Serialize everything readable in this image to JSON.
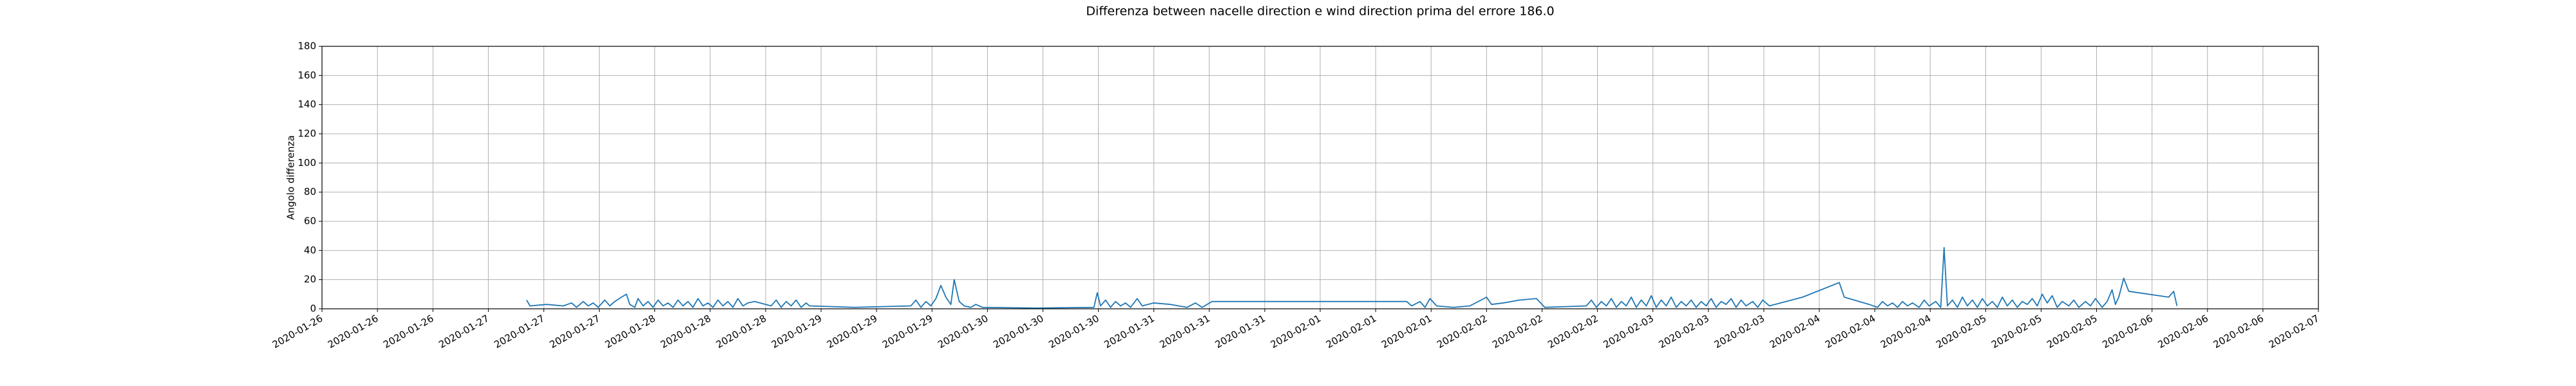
{
  "chart_data": {
    "type": "line",
    "title": "Differenza between nacelle direction e wind direction prima del errore 186.0",
    "y_label": "Angolo differenza",
    "series": [
      {
        "color": "#1f77b4",
        "x": [
          18288.23,
          18288.25,
          18288.35,
          18288.45,
          18288.5,
          18288.53,
          18288.57,
          18288.6,
          18288.63,
          18288.66,
          18288.7,
          18288.73,
          18288.76,
          18288.8,
          18288.83,
          18288.85,
          18288.88,
          18288.9,
          18288.93,
          18288.96,
          18288.99,
          18289.02,
          18289.05,
          18289.08,
          18289.11,
          18289.14,
          18289.17,
          18289.2,
          18289.23,
          18289.26,
          18289.29,
          18289.32,
          18289.35,
          18289.38,
          18289.41,
          18289.44,
          18289.47,
          18289.5,
          18289.53,
          18289.56,
          18289.6,
          18289.7,
          18289.73,
          18289.76,
          18289.79,
          18289.82,
          18289.85,
          18289.88,
          18289.91,
          18289.93,
          18290.2,
          18290.54,
          18290.57,
          18290.6,
          18290.63,
          18290.66,
          18290.69,
          18290.72,
          18290.75,
          18290.78,
          18290.8,
          18290.83,
          18290.86,
          18290.9,
          18290.93,
          18290.97,
          18291.3,
          18291.64,
          18291.66,
          18291.68,
          18291.71,
          18291.74,
          18291.77,
          18291.8,
          18291.83,
          18291.86,
          18291.9,
          18291.93,
          18292.0,
          18292.1,
          18292.2,
          18292.25,
          18292.29,
          18292.35,
          18293.52,
          18293.55,
          18293.6,
          18293.63,
          18293.66,
          18293.7,
          18293.8,
          18293.9,
          18294.0,
          18294.03,
          18294.1,
          18294.2,
          18294.3,
          18294.35,
          18294.6,
          18294.63,
          18294.66,
          18294.69,
          18294.72,
          18294.75,
          18294.78,
          18294.81,
          18294.84,
          18294.87,
          18294.9,
          18294.93,
          18294.96,
          18294.99,
          18295.02,
          18295.05,
          18295.08,
          18295.11,
          18295.14,
          18295.17,
          18295.2,
          18295.23,
          18295.26,
          18295.29,
          18295.32,
          18295.35,
          18295.38,
          18295.41,
          18295.44,
          18295.47,
          18295.5,
          18295.53,
          18295.56,
          18295.6,
          18295.63,
          18295.66,
          18295.7,
          18295.9,
          18296.12,
          18296.15,
          18296.3,
          18296.35,
          18296.38,
          18296.41,
          18296.44,
          18296.47,
          18296.5,
          18296.53,
          18296.56,
          18296.6,
          18296.63,
          18296.66,
          18296.7,
          18296.73,
          18296.75,
          18296.77,
          18296.8,
          18296.83,
          18296.86,
          18296.89,
          18296.92,
          18296.95,
          18296.98,
          18297.01,
          18297.04,
          18297.07,
          18297.1,
          18297.13,
          18297.16,
          18297.19,
          18297.22,
          18297.25,
          18297.28,
          18297.31,
          18297.34,
          18297.37,
          18297.4,
          18297.43,
          18297.46,
          18297.5,
          18297.53,
          18297.56,
          18297.6,
          18297.63,
          18297.66,
          18297.7,
          18297.73,
          18297.76,
          18297.78,
          18297.8,
          18297.83,
          18297.86,
          18298.1,
          18298.13,
          18298.15
        ],
        "values": [
          6,
          2,
          3,
          2,
          4,
          1,
          5,
          2,
          4,
          1,
          6,
          2,
          5,
          8,
          10,
          3,
          1,
          7,
          2,
          5,
          1,
          6,
          2,
          4,
          1,
          6,
          2,
          5,
          1,
          7,
          2,
          4,
          1,
          6,
          2,
          5,
          1,
          7,
          2,
          4,
          5,
          2,
          6,
          1,
          5,
          2,
          6,
          1,
          4,
          2,
          1,
          2,
          6,
          1,
          5,
          2,
          7,
          16,
          8,
          3,
          20,
          5,
          2,
          1,
          3,
          1,
          0.5,
          1,
          11,
          2,
          6,
          1,
          5,
          2,
          4,
          1,
          7,
          2,
          4,
          3,
          1,
          4,
          1,
          5,
          5,
          2,
          5,
          1,
          7,
          2,
          1,
          2,
          8,
          3,
          4,
          6,
          7,
          1,
          2,
          6,
          1,
          5,
          2,
          7,
          1,
          5,
          2,
          8,
          1,
          6,
          2,
          9,
          1,
          6,
          2,
          8,
          1,
          5,
          2,
          6,
          1,
          5,
          2,
          7,
          1,
          5,
          3,
          7,
          1,
          6,
          2,
          5,
          1,
          6,
          2,
          8,
          18,
          8,
          3,
          1,
          5,
          2,
          4,
          1,
          5,
          2,
          4,
          1,
          6,
          2,
          5,
          1,
          42,
          2,
          6,
          1,
          8,
          2,
          6,
          1,
          7,
          2,
          5,
          1,
          8,
          2,
          6,
          1,
          5,
          3,
          7,
          2,
          10,
          4,
          9,
          1,
          5,
          2,
          6,
          1,
          5,
          2,
          7,
          1,
          5,
          13,
          3,
          8,
          21,
          12,
          8,
          12,
          2
        ]
      }
    ],
    "xlim": [
      18287,
      18299
    ],
    "xticks": [
      {
        "value": 18287,
        "label": "2020-01-26"
      },
      {
        "value": 18287.3333,
        "label": "2020-01-26"
      },
      {
        "value": 18287.6667,
        "label": "2020-01-26"
      },
      {
        "value": 18288,
        "label": "2020-01-27"
      },
      {
        "value": 18288.3333,
        "label": "2020-01-27"
      },
      {
        "value": 18288.6667,
        "label": "2020-01-27"
      },
      {
        "value": 18289,
        "label": "2020-01-28"
      },
      {
        "value": 18289.3333,
        "label": "2020-01-28"
      },
      {
        "value": 18289.6667,
        "label": "2020-01-28"
      },
      {
        "value": 18290,
        "label": "2020-01-29"
      },
      {
        "value": 18290.3333,
        "label": "2020-01-29"
      },
      {
        "value": 18290.6667,
        "label": "2020-01-29"
      },
      {
        "value": 18291,
        "label": "2020-01-30"
      },
      {
        "value": 18291.3333,
        "label": "2020-01-30"
      },
      {
        "value": 18291.6667,
        "label": "2020-01-30"
      },
      {
        "value": 18292,
        "label": "2020-01-31"
      },
      {
        "value": 18292.3333,
        "label": "2020-01-31"
      },
      {
        "value": 18292.6667,
        "label": "2020-01-31"
      },
      {
        "value": 18293,
        "label": "2020-02-01"
      },
      {
        "value": 18293.3333,
        "label": "2020-02-01"
      },
      {
        "value": 18293.6667,
        "label": "2020-02-01"
      },
      {
        "value": 18294,
        "label": "2020-02-02"
      },
      {
        "value": 18294.3333,
        "label": "2020-02-02"
      },
      {
        "value": 18294.6667,
        "label": "2020-02-02"
      },
      {
        "value": 18295,
        "label": "2020-02-03"
      },
      {
        "value": 18295.3333,
        "label": "2020-02-03"
      },
      {
        "value": 18295.6667,
        "label": "2020-02-03"
      },
      {
        "value": 18296,
        "label": "2020-02-04"
      },
      {
        "value": 18296.3333,
        "label": "2020-02-04"
      },
      {
        "value": 18296.6667,
        "label": "2020-02-04"
      },
      {
        "value": 18297,
        "label": "2020-02-05"
      },
      {
        "value": 18297.3333,
        "label": "2020-02-05"
      },
      {
        "value": 18297.6667,
        "label": "2020-02-05"
      },
      {
        "value": 18298,
        "label": "2020-02-06"
      },
      {
        "value": 18298.3333,
        "label": "2020-02-06"
      },
      {
        "value": 18298.6667,
        "label": "2020-02-06"
      },
      {
        "value": 18299,
        "label": "2020-02-07"
      }
    ],
    "ylim": [
      0,
      180
    ],
    "yticks": [
      0,
      20,
      40,
      60,
      80,
      100,
      120,
      140,
      160,
      180
    ],
    "grid": true
  }
}
